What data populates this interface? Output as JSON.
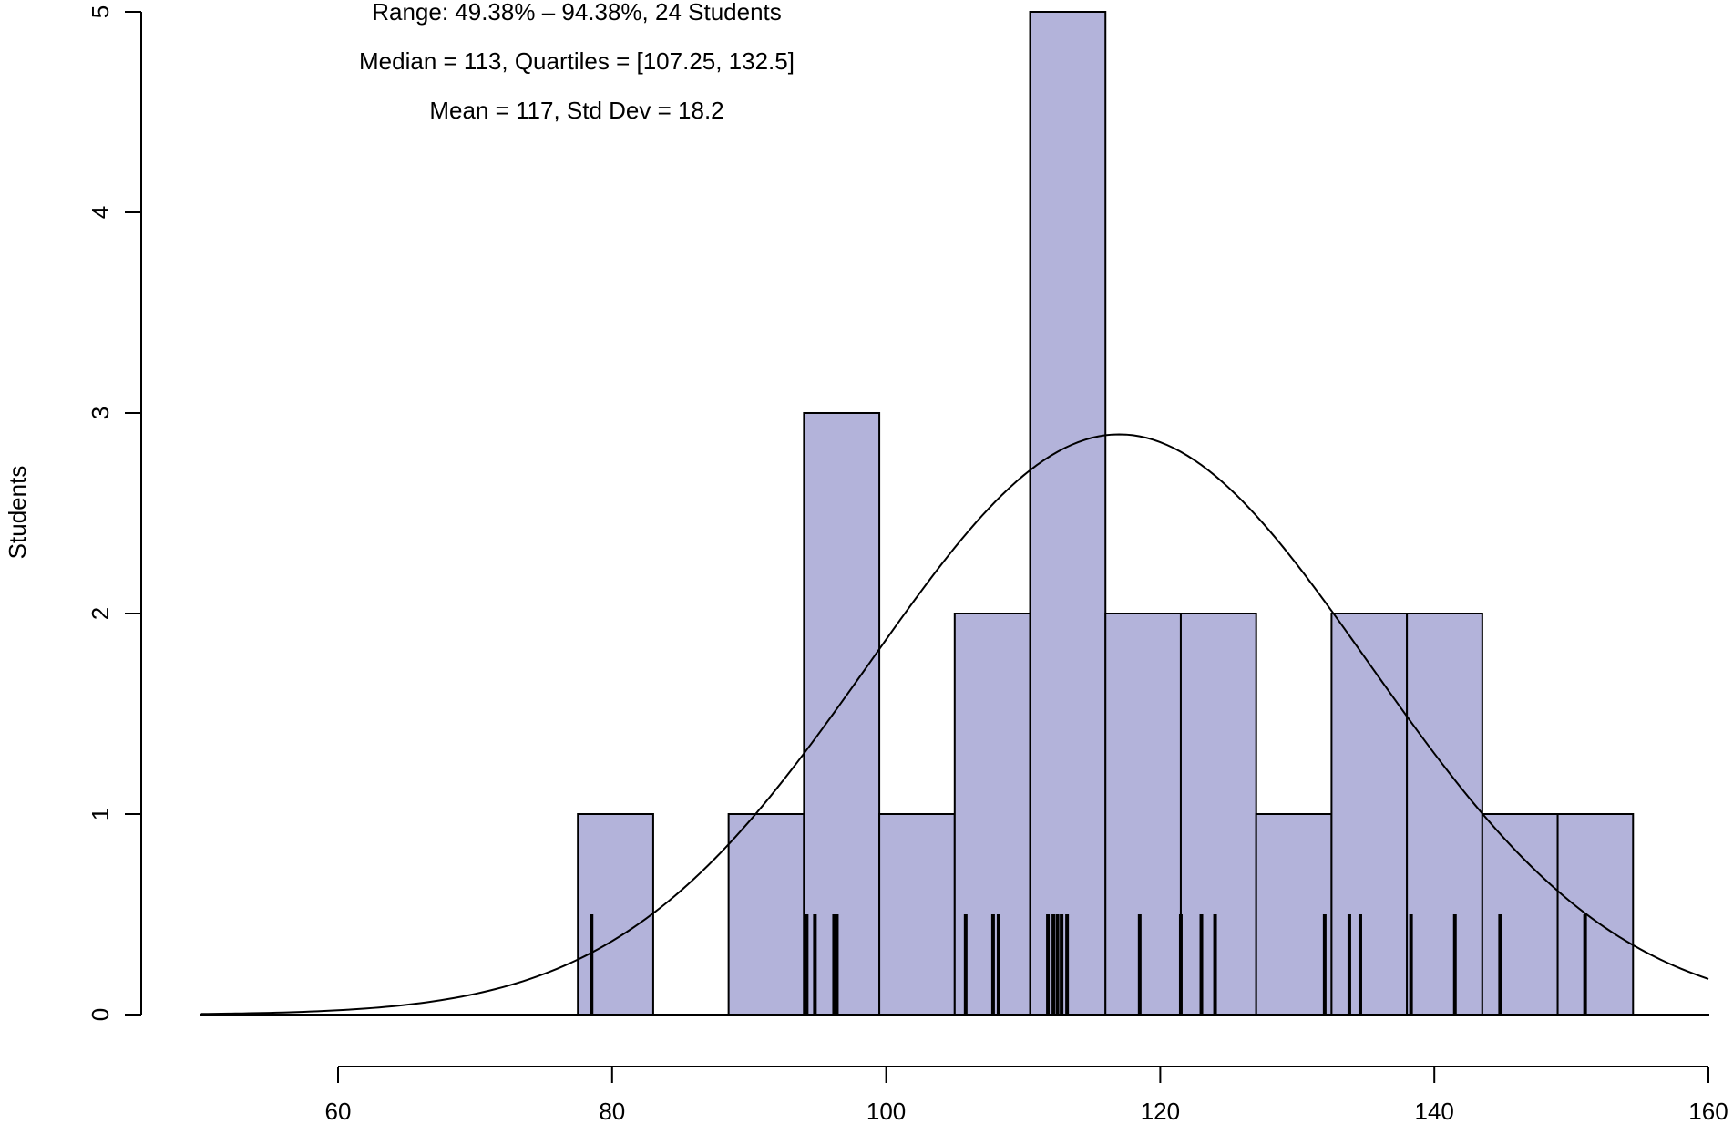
{
  "chart_data": {
    "type": "histogram",
    "annotations": [
      "Range: 49.38% – 94.38%, 24 Students",
      "Median = 113, Quartiles = [107.25, 132.5]",
      "Mean = 117, Std Dev = 18.2"
    ],
    "ylabel": "Students",
    "xlabel": "",
    "xlim": [
      50,
      160
    ],
    "ylim": [
      0,
      5
    ],
    "x_ticks": [
      60,
      80,
      100,
      120,
      140,
      160
    ],
    "y_ticks": [
      0,
      1,
      2,
      3,
      4,
      5
    ],
    "bar_color": "#b3b3da",
    "bins": [
      {
        "start": 77.5,
        "end": 83.0,
        "count": 1
      },
      {
        "start": 83.0,
        "end": 88.5,
        "count": 0
      },
      {
        "start": 88.5,
        "end": 94.0,
        "count": 1
      },
      {
        "start": 94.0,
        "end": 99.5,
        "count": 3
      },
      {
        "start": 99.5,
        "end": 105.0,
        "count": 1
      },
      {
        "start": 105.0,
        "end": 110.5,
        "count": 2
      },
      {
        "start": 110.5,
        "end": 116.0,
        "count": 5
      },
      {
        "start": 116.0,
        "end": 121.5,
        "count": 2
      },
      {
        "start": 121.5,
        "end": 127.0,
        "count": 2
      },
      {
        "start": 127.0,
        "end": 132.5,
        "count": 1
      },
      {
        "start": 132.5,
        "end": 138.0,
        "count": 2
      },
      {
        "start": 138.0,
        "end": 143.5,
        "count": 2
      },
      {
        "start": 143.5,
        "end": 149.0,
        "count": 1
      },
      {
        "start": 149.0,
        "end": 154.5,
        "count": 1
      }
    ],
    "rug": [
      78.5,
      94.2,
      94.8,
      96.2,
      96.4,
      105.8,
      107.8,
      108.2,
      111.8,
      112.2,
      112.5,
      112.8,
      113.2,
      118.5,
      121.5,
      123.0,
      124.0,
      132.0,
      133.8,
      134.6,
      138.3,
      141.5,
      144.8,
      151.0
    ],
    "rug_height": 0.5,
    "normal_curve": {
      "mean": 117,
      "sd": 18.2,
      "n": 24,
      "bin_width": 5.5
    }
  }
}
